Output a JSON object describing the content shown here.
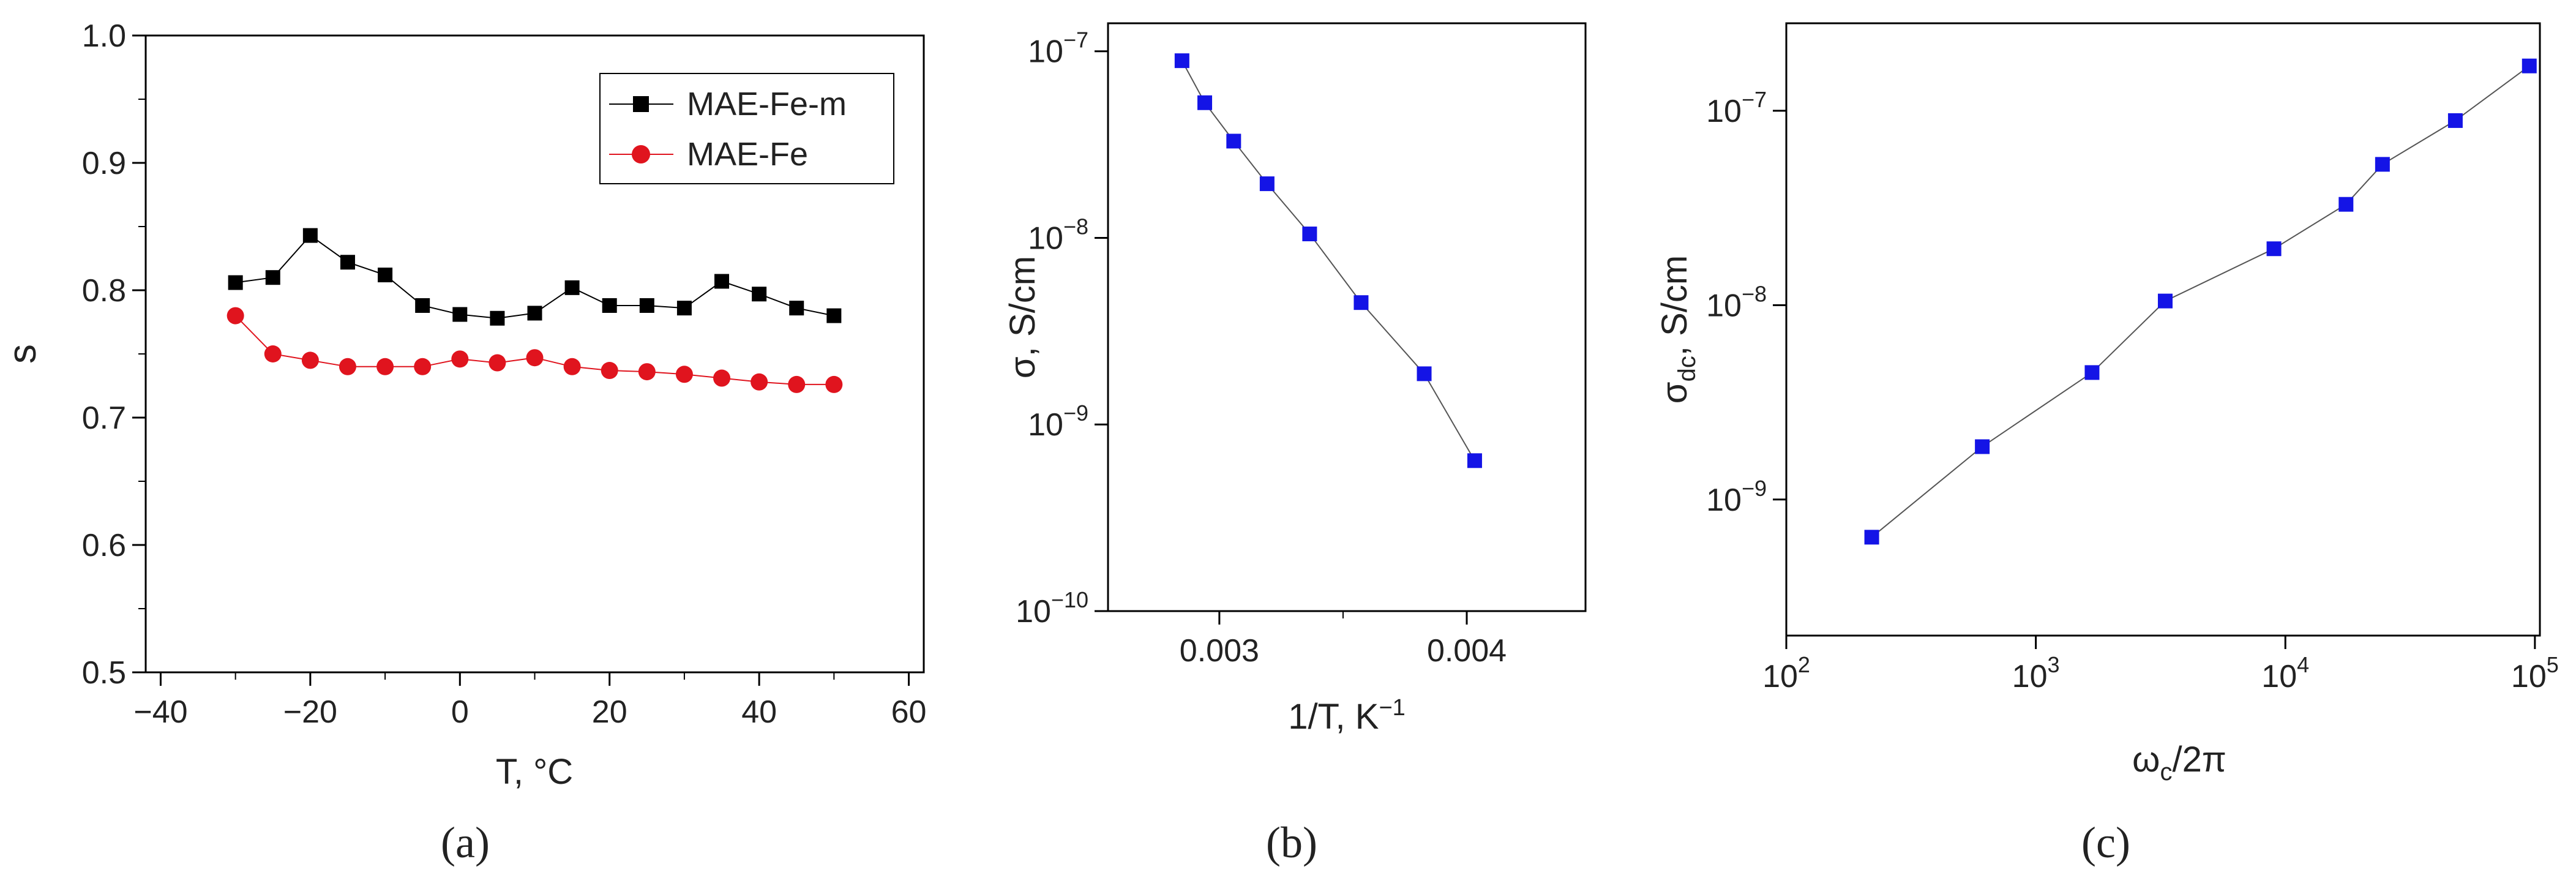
{
  "chart_data": [
    {
      "type": "line",
      "panel_label": "(a)",
      "xlabel": "T, °C",
      "ylabel": "s",
      "xlim": [
        -42,
        62
      ],
      "ylim": [
        0.5,
        1.0
      ],
      "x_ticks": [
        -40,
        -20,
        0,
        20,
        40,
        60
      ],
      "x_tick_labels": [
        "−40",
        "−20",
        "0",
        "20",
        "40",
        "60"
      ],
      "y_ticks": [
        0.5,
        0.6,
        0.7,
        0.8,
        0.9,
        1.0
      ],
      "y_tick_labels": [
        "0.5",
        "0.6",
        "0.7",
        "0.8",
        "0.9",
        "1.0"
      ],
      "legend_position": "top-right",
      "x": [
        -30,
        -25,
        -20,
        -15,
        -10,
        -5,
        0,
        5,
        10,
        15,
        20,
        25,
        30,
        35,
        40,
        45,
        50
      ],
      "series": [
        {
          "name": "MAE-Fe-m",
          "marker": "square",
          "color": "#000000",
          "values": [
            0.806,
            0.81,
            0.843,
            0.822,
            0.812,
            0.788,
            0.781,
            0.778,
            0.782,
            0.802,
            0.788,
            0.788,
            0.786,
            0.807,
            0.797,
            0.786,
            0.78
          ]
        },
        {
          "name": "MAE-Fe",
          "marker": "circle",
          "color": "#e0141e",
          "values": [
            0.78,
            0.75,
            0.745,
            0.74,
            0.74,
            0.74,
            0.746,
            0.743,
            0.747,
            0.74,
            0.737,
            0.736,
            0.734,
            0.731,
            0.728,
            0.726,
            0.726
          ]
        }
      ]
    },
    {
      "type": "line",
      "panel_label": "(b)",
      "xlabel": "1/T, K",
      "xlabel_sup": "−1",
      "ylabel": "σ, S/cm",
      "xlim": [
        0.00255,
        0.00448
      ],
      "ylim_log10": [
        -10,
        -6.85
      ],
      "y_scale": "log",
      "x_ticks": [
        0.003,
        0.004
      ],
      "x_tick_labels": [
        "0.003",
        "0.004"
      ],
      "y_tick_labels": [
        {
          "base": "10",
          "exp": "−7"
        },
        {
          "base": "10",
          "exp": "−8"
        },
        {
          "base": "10",
          "exp": "−9"
        },
        {
          "base": "10",
          "exp": "−10"
        }
      ],
      "series": [
        {
          "name": "σ",
          "marker": "square",
          "color": "#1414e6",
          "x": [
            0.002849,
            0.002941,
            0.003058,
            0.003193,
            0.003365,
            0.003573,
            0.003828,
            0.004032
          ],
          "values": [
            8.9e-08,
            5.3e-08,
            3.3e-08,
            1.95e-08,
            1.05e-08,
            4.5e-09,
            1.87e-09,
            6.4e-10
          ]
        }
      ]
    },
    {
      "type": "line",
      "panel_label": "(c)",
      "xlabel": "ω",
      "xlabel_sub": "c",
      "xlabel_tail": "/2π",
      "ylabel": "σ",
      "ylabel_sub": "dc",
      "ylabel_tail": ", S/cm",
      "x_scale": "log",
      "y_scale": "log",
      "xlim_log10": [
        2,
        5.02
      ],
      "ylim_log10": [
        -9.7,
        -6.55
      ],
      "x_tick_labels": [
        {
          "base": "10",
          "exp": "2"
        },
        {
          "base": "10",
          "exp": "3"
        },
        {
          "base": "10",
          "exp": "4"
        },
        {
          "base": "10",
          "exp": "5"
        }
      ],
      "y_tick_labels": [
        {
          "base": "10",
          "exp": "−7"
        },
        {
          "base": "10",
          "exp": "−8"
        },
        {
          "base": "10",
          "exp": "−9"
        }
      ],
      "series": [
        {
          "name": "σdc",
          "marker": "square",
          "color": "#1414e6",
          "x": [
            220,
            610,
            1680,
            3300,
            9000,
            17500,
            24500,
            48000,
            95000
          ],
          "values": [
            6.4e-10,
            1.87e-09,
            4.5e-09,
            1.05e-08,
            1.95e-08,
            3.3e-08,
            5.3e-08,
            8.9e-08,
            1.7e-07
          ]
        }
      ]
    }
  ]
}
